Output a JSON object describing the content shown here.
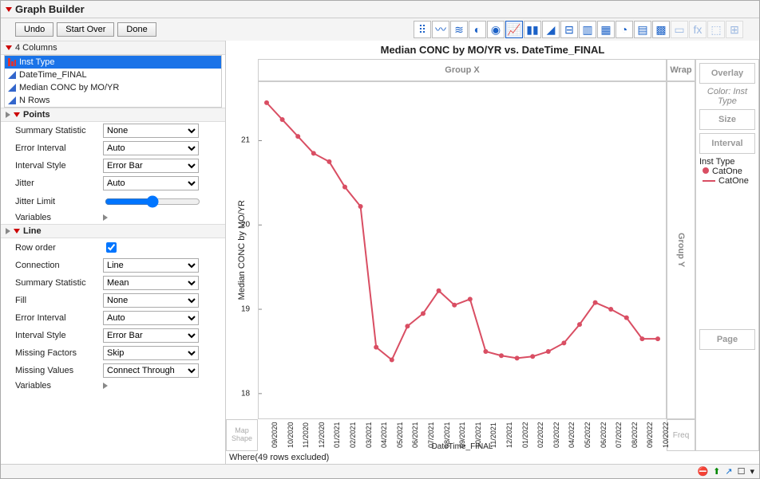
{
  "title": "Graph Builder",
  "buttons": {
    "undo": "Undo",
    "startover": "Start Over",
    "done": "Done"
  },
  "columns_header": "4 Columns",
  "columns": [
    {
      "label": "Inst Type",
      "selected": true,
      "glyph": "nominal"
    },
    {
      "label": "DateTime_FINAL",
      "selected": false,
      "glyph": "continuous"
    },
    {
      "label": "Median CONC by MO/YR",
      "selected": false,
      "glyph": "continuous"
    },
    {
      "label": "N Rows",
      "selected": false,
      "glyph": "continuous"
    }
  ],
  "points_header": "Points",
  "points": {
    "summary_stat": {
      "label": "Summary Statistic",
      "value": "None"
    },
    "error_interval": {
      "label": "Error Interval",
      "value": "Auto"
    },
    "interval_style": {
      "label": "Interval Style",
      "value": "Error Bar"
    },
    "jitter": {
      "label": "Jitter",
      "value": "Auto"
    },
    "jitter_limit": {
      "label": "Jitter Limit"
    },
    "variables": {
      "label": "Variables"
    }
  },
  "line_header": "Line",
  "line": {
    "row_order": {
      "label": "Row order",
      "checked": true
    },
    "connection": {
      "label": "Connection",
      "value": "Line"
    },
    "summary_stat": {
      "label": "Summary Statistic",
      "value": "Mean"
    },
    "fill": {
      "label": "Fill",
      "value": "None"
    },
    "error_interval": {
      "label": "Error Interval",
      "value": "Auto"
    },
    "interval_style": {
      "label": "Interval Style",
      "value": "Error Bar"
    },
    "missing_factors": {
      "label": "Missing Factors",
      "value": "Skip"
    },
    "missing_values": {
      "label": "Missing Values",
      "value": "Connect Through"
    },
    "variables": {
      "label": "Variables"
    }
  },
  "chart": {
    "title": "Median CONC by MO/YR vs. DateTime_FINAL",
    "ylabel": "Median CONC by MO/YR",
    "xlabel": "DateTime_FINAL",
    "yticks": [
      18,
      19,
      20,
      21
    ],
    "ylim": [
      17.8,
      21.6
    ],
    "categories": [
      "09/2020",
      "10/2020",
      "11/2020",
      "12/2020",
      "01/2021",
      "02/2021",
      "03/2021",
      "04/2021",
      "05/2021",
      "06/2021",
      "07/2021",
      "08/2021",
      "09/2021",
      "10/2021",
      "11/2021",
      "12/2021",
      "01/2022",
      "02/2022",
      "03/2022",
      "04/2022",
      "05/2022",
      "06/2022",
      "07/2022",
      "08/2022",
      "09/2022",
      "10/2022"
    ],
    "values": [
      21.45,
      21.25,
      21.05,
      20.85,
      20.75,
      20.45,
      20.22,
      18.55,
      18.4,
      18.8,
      18.95,
      19.22,
      19.05,
      19.12,
      18.5,
      18.45,
      18.42,
      18.44,
      18.5,
      18.6,
      18.82,
      19.08,
      19.0,
      18.9,
      18.65,
      18.65
    ],
    "line_color": "#d94e63",
    "marker_color": "#d94e63"
  },
  "zones": {
    "group_x": "Group X",
    "wrap": "Wrap",
    "overlay": "Overlay",
    "color_label": "Color: Inst Type",
    "size": "Size",
    "interval": "Interval",
    "group_y": "Group Y",
    "map_shape": "Map Shape",
    "freq": "Freq",
    "page": "Page"
  },
  "legend": {
    "title": "Inst Type",
    "point": "CatOne",
    "line": "CatOne"
  },
  "footer": "Where(49 rows excluded)",
  "status": {
    "evalbox": "☐"
  }
}
